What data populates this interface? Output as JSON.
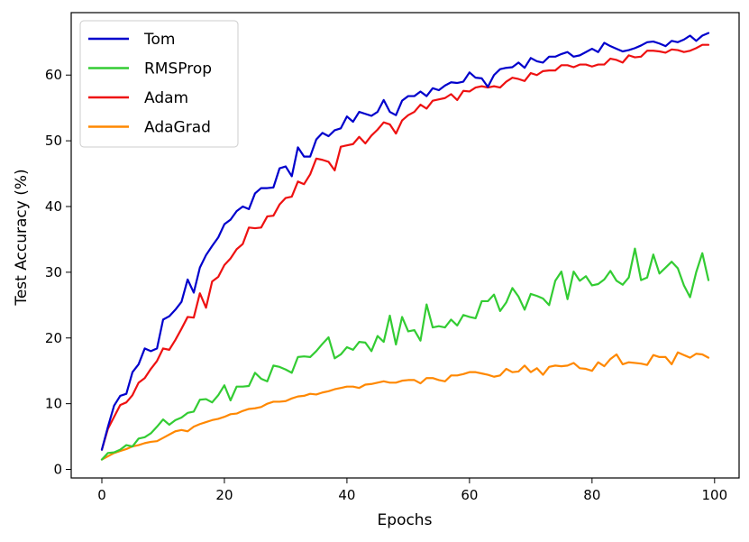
{
  "chart_data": {
    "type": "line",
    "title": "",
    "xlabel": "Epochs",
    "ylabel": "Test Accuracy (%)",
    "xlim": [
      -5,
      104
    ],
    "ylim": [
      -1.3,
      69.5
    ],
    "xticks": [
      0,
      20,
      40,
      60,
      80,
      100
    ],
    "yticks": [
      0,
      10,
      20,
      30,
      40,
      50,
      60
    ],
    "grid": false,
    "legend_position": "top-left",
    "series": [
      {
        "name": "Tom",
        "color": "#0000cc",
        "x": [
          0,
          1,
          2,
          3,
          4,
          5,
          6,
          7,
          8,
          9,
          10,
          11,
          12,
          13,
          14,
          15,
          16,
          17,
          18,
          19,
          20,
          21,
          22,
          23,
          24,
          25,
          26,
          27,
          28,
          29,
          30,
          31,
          32,
          33,
          34,
          35,
          36,
          37,
          38,
          39,
          40,
          41,
          42,
          43,
          44,
          45,
          46,
          47,
          48,
          49,
          50,
          51,
          52,
          53,
          54,
          55,
          56,
          57,
          58,
          59,
          60,
          61,
          62,
          63,
          64,
          65,
          66,
          67,
          68,
          69,
          70,
          71,
          72,
          73,
          74,
          75,
          76,
          77,
          78,
          79,
          80,
          81,
          82,
          83,
          84,
          85,
          86,
          87,
          88,
          89,
          90,
          91,
          92,
          93,
          94,
          95,
          96,
          97,
          98,
          99
        ],
        "values": [
          3.0,
          6.5,
          9.7,
          11.2,
          11.5,
          14.8,
          16.0,
          18.4,
          18.0,
          18.4,
          22.8,
          23.3,
          24.3,
          25.5,
          28.9,
          26.9,
          30.7,
          32.6,
          34.0,
          35.3,
          37.3,
          38.0,
          39.3,
          40.0,
          39.6,
          42.0,
          42.8,
          42.8,
          42.9,
          45.8,
          46.1,
          44.6,
          49.0,
          47.6,
          47.6,
          50.2,
          51.2,
          50.7,
          51.6,
          51.9,
          53.7,
          52.9,
          54.4,
          54.1,
          53.8,
          54.4,
          56.2,
          54.4,
          53.9,
          56.1,
          56.8,
          56.8,
          57.5,
          56.8,
          58.0,
          57.7,
          58.4,
          58.9,
          58.8,
          59.0,
          60.4,
          59.6,
          59.5,
          58.2,
          60.0,
          60.9,
          61.1,
          61.2,
          61.9,
          61.1,
          62.6,
          62.1,
          61.9,
          62.8,
          62.8,
          63.2,
          63.5,
          62.8,
          63.0,
          63.5,
          64.0,
          63.5,
          64.9,
          64.4,
          64.0,
          63.6,
          63.8,
          64.1,
          64.5,
          65.0,
          65.1,
          64.8,
          64.4,
          65.2,
          65.0,
          65.4,
          66.0,
          65.2,
          66.0,
          66.4
        ]
      },
      {
        "name": "RMSProp",
        "color": "#33cc33",
        "x": [
          0,
          1,
          2,
          3,
          4,
          5,
          6,
          7,
          8,
          9,
          10,
          11,
          12,
          13,
          14,
          15,
          16,
          17,
          18,
          19,
          20,
          21,
          22,
          23,
          24,
          25,
          26,
          27,
          28,
          29,
          30,
          31,
          32,
          33,
          34,
          35,
          36,
          37,
          38,
          39,
          40,
          41,
          42,
          43,
          44,
          45,
          46,
          47,
          48,
          49,
          50,
          51,
          52,
          53,
          54,
          55,
          56,
          57,
          58,
          59,
          60,
          61,
          62,
          63,
          64,
          65,
          66,
          67,
          68,
          69,
          70,
          71,
          72,
          73,
          74,
          75,
          76,
          77,
          78,
          79,
          80,
          81,
          82,
          83,
          84,
          85,
          86,
          87,
          88,
          89,
          90,
          91,
          92,
          93,
          94,
          95,
          96,
          97,
          98,
          99
        ],
        "values": [
          1.5,
          2.5,
          2.6,
          3.0,
          3.7,
          3.5,
          4.7,
          4.9,
          5.5,
          6.5,
          7.6,
          6.8,
          7.5,
          7.9,
          8.6,
          8.8,
          10.6,
          10.7,
          10.2,
          11.3,
          12.8,
          10.5,
          12.6,
          12.6,
          12.7,
          14.7,
          13.8,
          13.4,
          15.8,
          15.6,
          15.2,
          14.7,
          17.1,
          17.2,
          17.1,
          18.0,
          19.1,
          20.1,
          16.9,
          17.5,
          18.6,
          18.2,
          19.4,
          19.3,
          18.0,
          20.3,
          19.4,
          23.4,
          19.0,
          23.2,
          21.0,
          21.2,
          19.6,
          25.1,
          21.6,
          21.8,
          21.6,
          22.8,
          21.9,
          23.5,
          23.2,
          23.0,
          25.6,
          25.6,
          26.6,
          24.1,
          25.4,
          27.6,
          26.3,
          24.3,
          26.7,
          26.4,
          26.0,
          25.0,
          28.7,
          30.1,
          25.9,
          30.1,
          28.7,
          29.4,
          28.0,
          28.2,
          28.9,
          30.2,
          28.7,
          28.1,
          29.2,
          33.6,
          28.8,
          29.2,
          32.7,
          29.8,
          30.7,
          31.6,
          30.6,
          28.0,
          26.2,
          30.0,
          32.9,
          28.8
        ]
      },
      {
        "name": "Adam",
        "color": "#ee1111",
        "x": [
          0,
          1,
          2,
          3,
          4,
          5,
          6,
          7,
          8,
          9,
          10,
          11,
          12,
          13,
          14,
          15,
          16,
          17,
          18,
          19,
          20,
          21,
          22,
          23,
          24,
          25,
          26,
          27,
          28,
          29,
          30,
          31,
          32,
          33,
          34,
          35,
          36,
          37,
          38,
          39,
          40,
          41,
          42,
          43,
          44,
          45,
          46,
          47,
          48,
          49,
          50,
          51,
          52,
          53,
          54,
          55,
          56,
          57,
          58,
          59,
          60,
          61,
          62,
          63,
          64,
          65,
          66,
          67,
          68,
          69,
          70,
          71,
          72,
          73,
          74,
          75,
          76,
          77,
          78,
          79,
          80,
          81,
          82,
          83,
          84,
          85,
          86,
          87,
          88,
          89,
          90,
          91,
          92,
          93,
          94,
          95,
          96,
          97,
          98,
          99
        ],
        "values": [
          3.0,
          6.2,
          8.0,
          9.8,
          10.2,
          11.3,
          13.2,
          13.9,
          15.3,
          16.5,
          18.4,
          18.2,
          19.7,
          21.4,
          23.2,
          23.1,
          26.8,
          24.6,
          28.6,
          29.3,
          31.1,
          32.1,
          33.5,
          34.3,
          36.8,
          36.7,
          36.8,
          38.5,
          38.6,
          40.3,
          41.3,
          41.5,
          43.8,
          43.4,
          44.9,
          47.3,
          47.1,
          46.8,
          45.5,
          49.1,
          49.3,
          49.5,
          50.6,
          49.6,
          50.8,
          51.7,
          52.8,
          52.5,
          51.1,
          53.1,
          53.9,
          54.4,
          55.5,
          54.9,
          56.1,
          56.3,
          56.5,
          57.1,
          56.2,
          57.6,
          57.5,
          58.1,
          58.3,
          58.1,
          58.3,
          58.1,
          59.0,
          59.6,
          59.4,
          59.1,
          60.3,
          60.0,
          60.6,
          60.7,
          60.7,
          61.5,
          61.5,
          61.2,
          61.6,
          61.6,
          61.3,
          61.6,
          61.6,
          62.5,
          62.3,
          61.9,
          63.0,
          62.7,
          62.8,
          63.7,
          63.7,
          63.6,
          63.4,
          63.9,
          63.8,
          63.5,
          63.7,
          64.1,
          64.6,
          64.6
        ]
      },
      {
        "name": "AdaGrad",
        "color": "#ff8800",
        "x": [
          0,
          1,
          2,
          3,
          4,
          5,
          6,
          7,
          8,
          9,
          10,
          11,
          12,
          13,
          14,
          15,
          16,
          17,
          18,
          19,
          20,
          21,
          22,
          23,
          24,
          25,
          26,
          27,
          28,
          29,
          30,
          31,
          32,
          33,
          34,
          35,
          36,
          37,
          38,
          39,
          40,
          41,
          42,
          43,
          44,
          45,
          46,
          47,
          48,
          49,
          50,
          51,
          52,
          53,
          54,
          55,
          56,
          57,
          58,
          59,
          60,
          61,
          62,
          63,
          64,
          65,
          66,
          67,
          68,
          69,
          70,
          71,
          72,
          73,
          74,
          75,
          76,
          77,
          78,
          79,
          80,
          81,
          82,
          83,
          84,
          85,
          86,
          87,
          88,
          89,
          90,
          91,
          92,
          93,
          94,
          95,
          96,
          97,
          98,
          99
        ],
        "values": [
          1.5,
          2.0,
          2.5,
          2.8,
          3.1,
          3.5,
          3.7,
          4.0,
          4.2,
          4.3,
          4.8,
          5.3,
          5.8,
          6.0,
          5.8,
          6.5,
          6.9,
          7.2,
          7.5,
          7.7,
          8.0,
          8.4,
          8.5,
          8.9,
          9.2,
          9.3,
          9.5,
          10.0,
          10.3,
          10.3,
          10.4,
          10.8,
          11.1,
          11.2,
          11.5,
          11.4,
          11.7,
          11.9,
          12.2,
          12.4,
          12.6,
          12.6,
          12.4,
          12.9,
          13.0,
          13.2,
          13.4,
          13.2,
          13.2,
          13.5,
          13.6,
          13.6,
          13.1,
          13.9,
          13.9,
          13.6,
          13.4,
          14.3,
          14.3,
          14.5,
          14.8,
          14.8,
          14.6,
          14.4,
          14.1,
          14.3,
          15.3,
          14.8,
          14.9,
          15.8,
          14.8,
          15.4,
          14.4,
          15.6,
          15.8,
          15.7,
          15.8,
          16.2,
          15.4,
          15.3,
          15.0,
          16.3,
          15.7,
          16.8,
          17.5,
          16.0,
          16.3,
          16.2,
          16.1,
          15.9,
          17.4,
          17.1,
          17.1,
          16.0,
          17.8,
          17.4,
          17.0,
          17.6,
          17.5,
          17.0
        ]
      }
    ]
  }
}
